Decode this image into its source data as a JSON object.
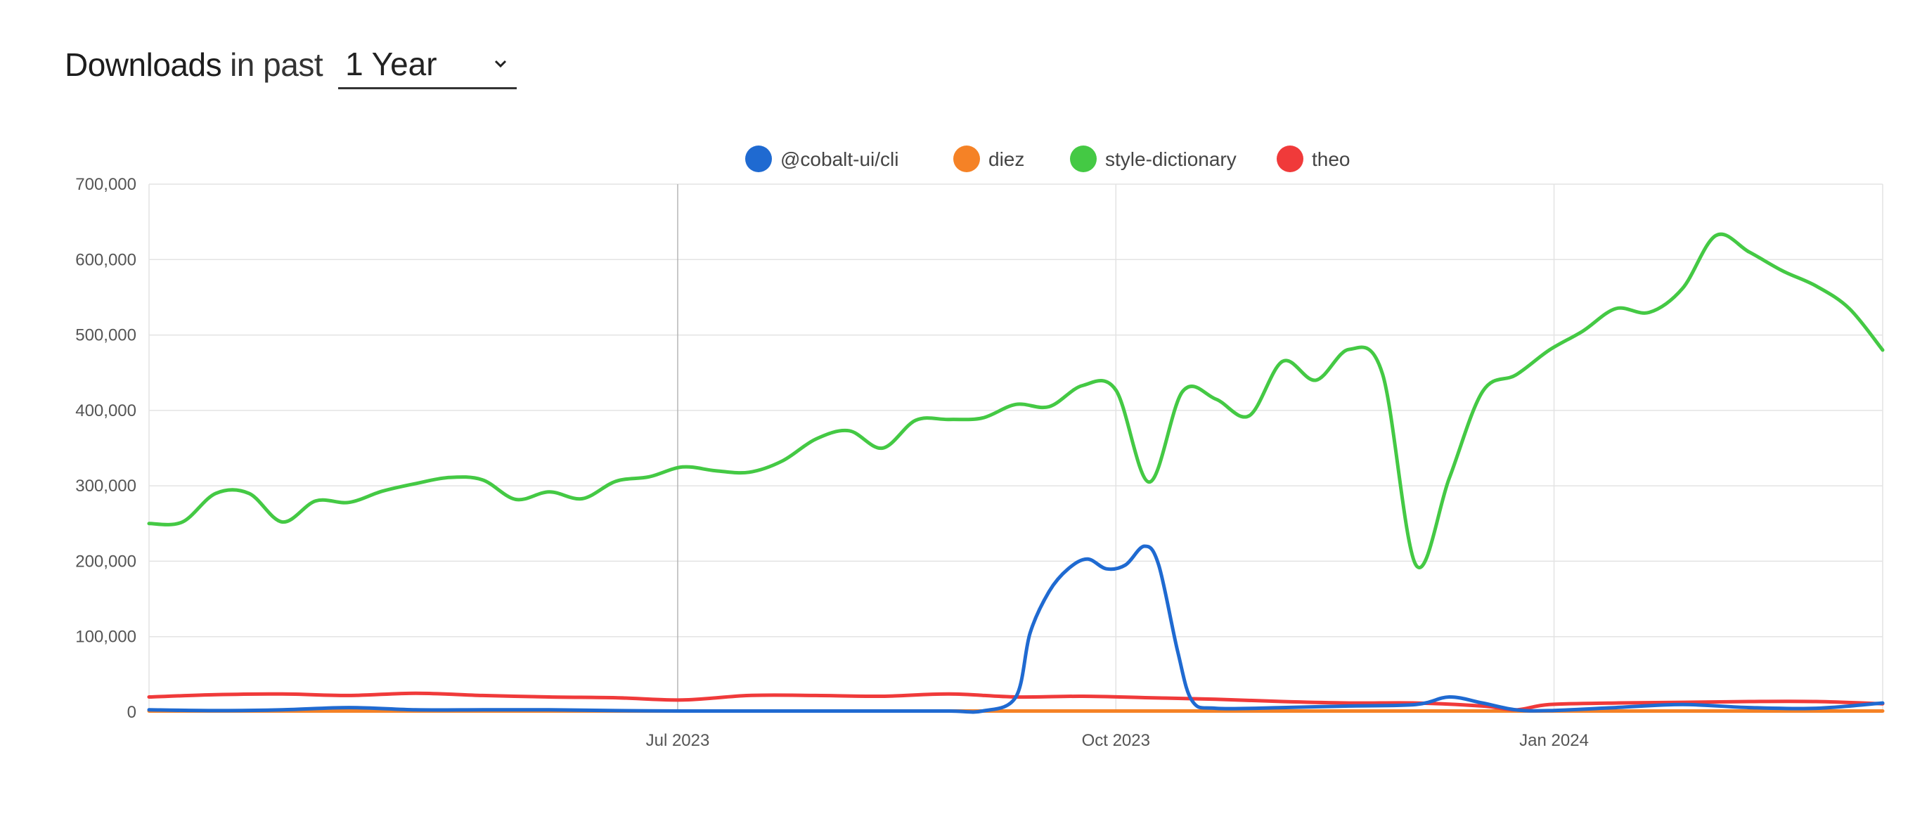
{
  "header": {
    "title_main": "Downloads",
    "title_sub": "in past",
    "range_selected": "1 Year"
  },
  "chart_data": {
    "type": "line",
    "title": "",
    "xlabel": "",
    "ylabel": "",
    "x_range": [
      "2023-03-12",
      "2024-03-10"
    ],
    "ylim": [
      0,
      700000
    ],
    "y_ticks": [
      0,
      100000,
      200000,
      300000,
      400000,
      500000,
      600000,
      700000
    ],
    "y_tick_labels": [
      "0",
      "100,000",
      "200,000",
      "300,000",
      "400,000",
      "500,000",
      "600,000",
      "700,000"
    ],
    "x_ticks": [
      "2023-07-01",
      "2023-10-01",
      "2024-01-01"
    ],
    "x_tick_labels": [
      "Jul 2023",
      "Oct 2023",
      "Jan 2024"
    ],
    "grid": true,
    "legend_position": "top-center",
    "series": [
      {
        "name": "@cobalt-ui/cli",
        "color": "#1f6ad1",
        "points": [
          [
            "2023-03-12",
            3000
          ],
          [
            "2023-03-26",
            2000
          ],
          [
            "2023-04-09",
            3000
          ],
          [
            "2023-04-23",
            6000
          ],
          [
            "2023-05-07",
            3000
          ],
          [
            "2023-05-21",
            3000
          ],
          [
            "2023-06-04",
            3000
          ],
          [
            "2023-06-18",
            2000
          ],
          [
            "2023-07-02",
            1000
          ],
          [
            "2023-07-16",
            1000
          ],
          [
            "2023-07-30",
            1000
          ],
          [
            "2023-08-13",
            1000
          ],
          [
            "2023-08-27",
            1000
          ],
          [
            "2023-09-03",
            1000
          ],
          [
            "2023-09-10",
            20000
          ],
          [
            "2023-09-13",
            105000
          ],
          [
            "2023-09-17",
            160000
          ],
          [
            "2023-09-21",
            190000
          ],
          [
            "2023-09-25",
            203000
          ],
          [
            "2023-09-29",
            190000
          ],
          [
            "2023-10-03",
            195000
          ],
          [
            "2023-10-07",
            220000
          ],
          [
            "2023-10-10",
            195000
          ],
          [
            "2023-10-14",
            80000
          ],
          [
            "2023-10-17",
            15000
          ],
          [
            "2023-10-22",
            5000
          ],
          [
            "2023-11-05",
            6000
          ],
          [
            "2023-11-19",
            8000
          ],
          [
            "2023-12-03",
            10000
          ],
          [
            "2023-12-10",
            20000
          ],
          [
            "2023-12-17",
            12000
          ],
          [
            "2023-12-24",
            3000
          ],
          [
            "2023-12-31",
            2000
          ],
          [
            "2024-01-14",
            6000
          ],
          [
            "2024-01-28",
            10000
          ],
          [
            "2024-02-11",
            6000
          ],
          [
            "2024-02-25",
            5000
          ],
          [
            "2024-03-10",
            12000
          ]
        ]
      },
      {
        "name": "diez",
        "color": "#f58226",
        "points": [
          [
            "2023-03-12",
            500
          ],
          [
            "2023-06-01",
            500
          ],
          [
            "2023-09-01",
            500
          ],
          [
            "2023-12-01",
            500
          ],
          [
            "2024-03-10",
            500
          ]
        ]
      },
      {
        "name": "style-dictionary",
        "color": "#44c944",
        "points": [
          [
            "2023-03-12",
            250000
          ],
          [
            "2023-03-19",
            252000
          ],
          [
            "2023-03-26",
            290000
          ],
          [
            "2023-04-02",
            290000
          ],
          [
            "2023-04-09",
            252000
          ],
          [
            "2023-04-16",
            280000
          ],
          [
            "2023-04-23",
            278000
          ],
          [
            "2023-04-30",
            293000
          ],
          [
            "2023-05-07",
            303000
          ],
          [
            "2023-05-14",
            311000
          ],
          [
            "2023-05-21",
            308000
          ],
          [
            "2023-05-28",
            282000
          ],
          [
            "2023-06-04",
            292000
          ],
          [
            "2023-06-11",
            283000
          ],
          [
            "2023-06-18",
            306000
          ],
          [
            "2023-06-25",
            312000
          ],
          [
            "2023-07-02",
            325000
          ],
          [
            "2023-07-09",
            320000
          ],
          [
            "2023-07-16",
            318000
          ],
          [
            "2023-07-23",
            333000
          ],
          [
            "2023-07-30",
            362000
          ],
          [
            "2023-08-06",
            373000
          ],
          [
            "2023-08-13",
            350000
          ],
          [
            "2023-08-20",
            387000
          ],
          [
            "2023-08-27",
            388000
          ],
          [
            "2023-09-03",
            390000
          ],
          [
            "2023-09-10",
            408000
          ],
          [
            "2023-09-17",
            405000
          ],
          [
            "2023-09-24",
            433000
          ],
          [
            "2023-10-01",
            427000
          ],
          [
            "2023-10-08",
            305000
          ],
          [
            "2023-10-15",
            425000
          ],
          [
            "2023-10-22",
            415000
          ],
          [
            "2023-10-29",
            393000
          ],
          [
            "2023-11-05",
            465000
          ],
          [
            "2023-11-12",
            440000
          ],
          [
            "2023-11-19",
            481000
          ],
          [
            "2023-11-26",
            448000
          ],
          [
            "2023-12-03",
            195000
          ],
          [
            "2023-12-10",
            310000
          ],
          [
            "2023-12-17",
            425000
          ],
          [
            "2023-12-24",
            447000
          ],
          [
            "2023-12-31",
            480000
          ],
          [
            "2024-01-07",
            505000
          ],
          [
            "2024-01-14",
            535000
          ],
          [
            "2024-01-21",
            530000
          ],
          [
            "2024-01-28",
            562000
          ],
          [
            "2024-02-04",
            632000
          ],
          [
            "2024-02-11",
            610000
          ],
          [
            "2024-02-18",
            585000
          ],
          [
            "2024-02-25",
            565000
          ],
          [
            "2024-03-03",
            535000
          ],
          [
            "2024-03-10",
            480000
          ]
        ]
      },
      {
        "name": "theo",
        "color": "#f03a3a",
        "points": [
          [
            "2023-03-12",
            20000
          ],
          [
            "2023-03-26",
            23000
          ],
          [
            "2023-04-09",
            24000
          ],
          [
            "2023-04-23",
            22000
          ],
          [
            "2023-05-07",
            25000
          ],
          [
            "2023-05-21",
            22000
          ],
          [
            "2023-06-04",
            20000
          ],
          [
            "2023-06-18",
            19000
          ],
          [
            "2023-07-02",
            16000
          ],
          [
            "2023-07-16",
            22000
          ],
          [
            "2023-07-30",
            22000
          ],
          [
            "2023-08-13",
            21000
          ],
          [
            "2023-08-27",
            24000
          ],
          [
            "2023-09-10",
            20000
          ],
          [
            "2023-09-24",
            21000
          ],
          [
            "2023-10-08",
            19000
          ],
          [
            "2023-10-22",
            17000
          ],
          [
            "2023-11-05",
            14000
          ],
          [
            "2023-11-19",
            12000
          ],
          [
            "2023-12-03",
            12000
          ],
          [
            "2023-12-17",
            8000
          ],
          [
            "2023-12-24",
            3000
          ],
          [
            "2023-12-31",
            10000
          ],
          [
            "2024-01-14",
            12000
          ],
          [
            "2024-01-28",
            13000
          ],
          [
            "2024-02-11",
            14000
          ],
          [
            "2024-02-25",
            14000
          ],
          [
            "2024-03-10",
            11000
          ]
        ]
      }
    ]
  }
}
